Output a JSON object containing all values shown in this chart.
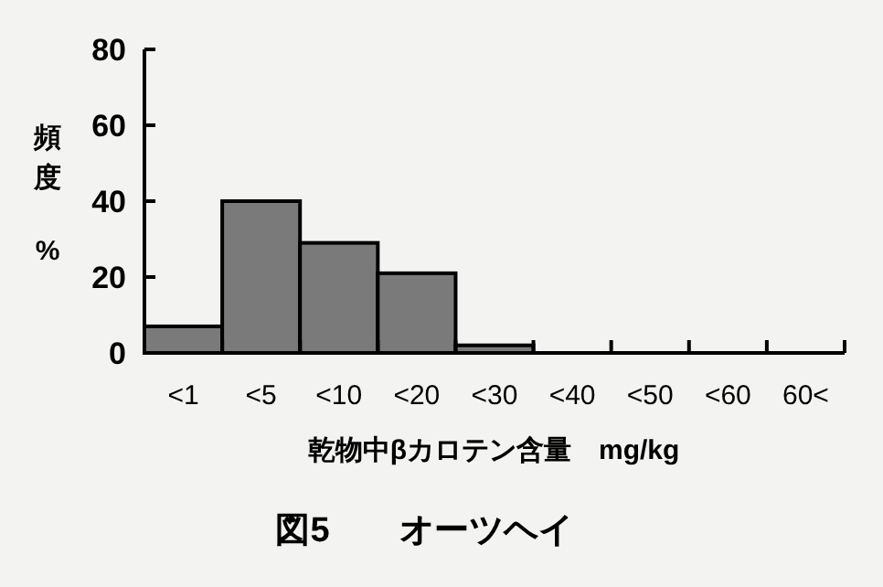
{
  "chart_data": {
    "type": "bar",
    "title": "図5　　オーツヘイ",
    "xlabel": "乾物中βカロテン含量　mg/kg",
    "ylabel": "頻度 %",
    "categories": [
      "<1",
      "<5",
      "<10",
      "<20",
      "<30",
      "<40",
      "<50",
      "<60",
      "60<"
    ],
    "values": [
      7,
      40,
      29,
      21,
      2,
      0,
      0,
      0,
      0
    ],
    "color": "#7a7a7a",
    "ylim": [
      0,
      80
    ],
    "yticks": [
      0,
      20,
      40,
      60,
      80
    ],
    "grid": false
  }
}
